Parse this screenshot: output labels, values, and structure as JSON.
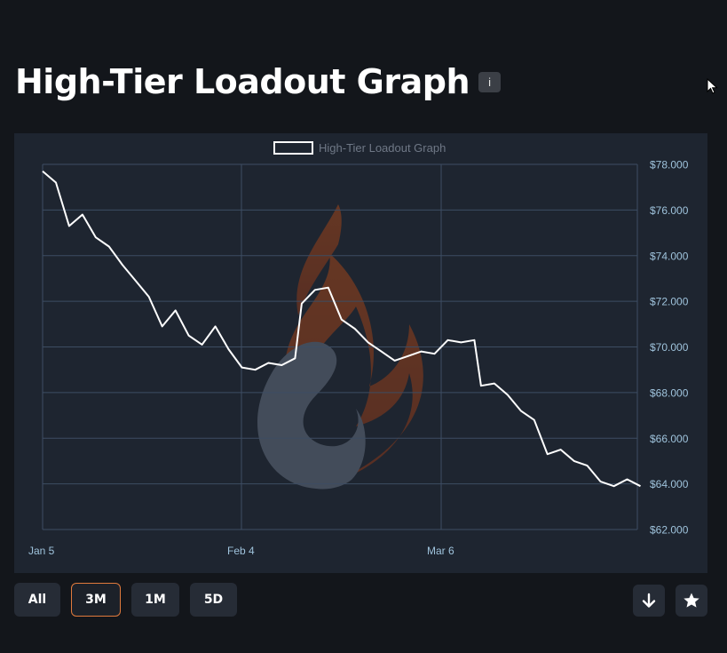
{
  "header": {
    "title": "High-Tier Loadout Graph",
    "info_label": "i"
  },
  "range_buttons": [
    {
      "label": "All",
      "active": false
    },
    {
      "label": "3M",
      "active": true
    },
    {
      "label": "1M",
      "active": false
    },
    {
      "label": "5D",
      "active": false
    }
  ],
  "actions": {
    "download_icon": "arrow-down-icon",
    "favorite_icon": "star-icon"
  },
  "colors": {
    "background": "#13161b",
    "panel": "#1e2530",
    "grid": "#3d4d63",
    "line": "#ffffff",
    "tick_label": "#9fc3dc",
    "active_border": "#e07a3c"
  },
  "chart_data": {
    "type": "line",
    "title": "",
    "legend": {
      "label": "High-Tier Loadout Graph",
      "position": "top-center"
    },
    "x_ticks": [
      "Jan 5",
      "Feb 4",
      "Mar 6"
    ],
    "y_ticks": [
      "$62.000",
      "$64.000",
      "$66.000",
      "$68.000",
      "$70.000",
      "$72.000",
      "$74.000",
      "$76.000",
      "$78.000"
    ],
    "ylim": [
      62,
      78
    ],
    "grid": true,
    "series": [
      {
        "x": [
          "Jan 5",
          "Jan 7",
          "Jan 9",
          "Jan 11",
          "Jan 13",
          "Jan 15",
          "Jan 17",
          "Jan 19",
          "Jan 21",
          "Jan 23",
          "Jan 25",
          "Jan 27",
          "Jan 29",
          "Jan 31",
          "Feb 2",
          "Feb 4",
          "Feb 6",
          "Feb 8",
          "Feb 10",
          "Feb 12",
          "Feb 13",
          "Feb 15",
          "Feb 17",
          "Feb 19",
          "Feb 21",
          "Feb 23",
          "Feb 25",
          "Feb 27",
          "Mar 1",
          "Mar 3",
          "Mar 5",
          "Mar 7",
          "Mar 9",
          "Mar 11",
          "Mar 12",
          "Mar 14",
          "Mar 16",
          "Mar 18",
          "Mar 20",
          "Mar 22",
          "Mar 24",
          "Mar 26",
          "Mar 28",
          "Mar 30",
          "Apr 1",
          "Apr 3",
          "Apr 5"
        ],
        "values": [
          77.7,
          77.2,
          75.3,
          75.8,
          74.8,
          74.4,
          73.6,
          72.9,
          72.2,
          70.9,
          71.6,
          70.5,
          70.1,
          70.9,
          69.9,
          69.1,
          69.0,
          69.3,
          69.2,
          69.5,
          71.9,
          72.5,
          72.6,
          71.2,
          70.8,
          70.2,
          69.8,
          69.4,
          69.6,
          69.8,
          69.7,
          70.3,
          70.2,
          70.3,
          68.3,
          68.4,
          67.9,
          67.2,
          66.8,
          65.3,
          65.5,
          65.0,
          64.8,
          64.1,
          63.9,
          64.2,
          63.9
        ]
      }
    ]
  }
}
